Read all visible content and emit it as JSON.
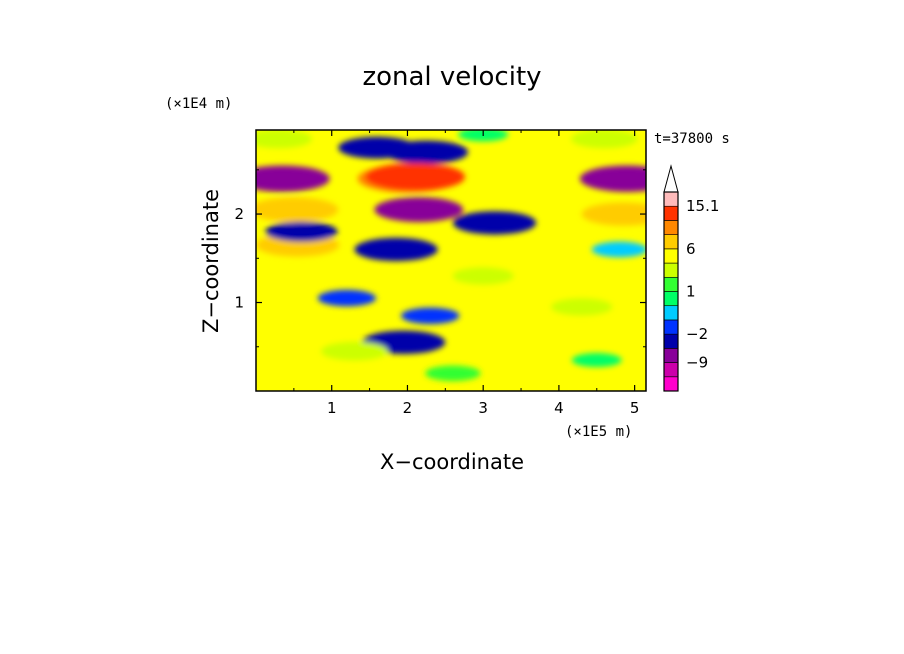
{
  "chart_data": {
    "type": "heatmap",
    "title": "zonal velocity",
    "xlabel": "X−coordinate",
    "ylabel": "Z−coordinate",
    "x_unit": "(×1E5 m)",
    "y_unit": "(×1E4 m)",
    "time_label": "t=37800 s",
    "xlim": [
      0,
      5.15
    ],
    "ylim": [
      0,
      2.95
    ],
    "x_ticks": [
      1,
      2,
      3,
      4,
      5
    ],
    "y_ticks": [
      1,
      2
    ],
    "x_tick_labels": [
      "1",
      "2",
      "3",
      "4",
      "5"
    ],
    "y_tick_labels": [
      "1",
      "2"
    ],
    "colorbar": {
      "levels": [
        -15,
        -12,
        -9,
        -6,
        -2,
        -1,
        0,
        1,
        2,
        4,
        6,
        9,
        12,
        15.1
      ],
      "labels": [
        {
          "value": 15.1,
          "text": "15.1"
        },
        {
          "value": 6,
          "text": "6"
        },
        {
          "value": 1,
          "text": "1"
        },
        {
          "value": -2,
          "text": "−2"
        },
        {
          "value": -9,
          "text": "−9"
        }
      ],
      "colors": [
        "#ff00cc",
        "#cc00aa",
        "#880099",
        "#0000aa",
        "#0033ff",
        "#00ccff",
        "#00ff66",
        "#33ff33",
        "#ccff00",
        "#ffff00",
        "#ffcc00",
        "#ff8800",
        "#ff3300",
        "#ffbbbb"
      ],
      "extend_top_color": "#ffffff"
    },
    "field_features": [
      {
        "x": 0.35,
        "z": 2.4,
        "value": -8
      },
      {
        "x": 4.9,
        "z": 2.4,
        "value": -8
      },
      {
        "x": 2.15,
        "z": 2.05,
        "value": -7
      },
      {
        "x": 3.15,
        "z": 1.9,
        "value": -6
      },
      {
        "x": 2.25,
        "z": 2.7,
        "value": -6
      },
      {
        "x": 1.6,
        "z": 2.75,
        "value": -5
      },
      {
        "x": 2.0,
        "z": 2.4,
        "value": 9
      },
      {
        "x": 2.1,
        "z": 2.42,
        "value": 13
      },
      {
        "x": 0.5,
        "z": 2.05,
        "value": 7
      },
      {
        "x": 4.85,
        "z": 2.0,
        "value": 6
      },
      {
        "x": 0.55,
        "z": 1.65,
        "value": 6
      },
      {
        "x": 1.85,
        "z": 1.6,
        "value": -6
      },
      {
        "x": 1.95,
        "z": 0.55,
        "value": -6
      },
      {
        "x": 0.6,
        "z": 1.8,
        "value": -4
      },
      {
        "x": 0.45,
        "z": 0.65,
        "value": 4
      },
      {
        "x": 1.3,
        "z": 0.45,
        "value": 3
      },
      {
        "x": 3.0,
        "z": 1.3,
        "value": 2
      },
      {
        "x": 4.3,
        "z": 0.95,
        "value": 2
      },
      {
        "x": 3.0,
        "z": 2.9,
        "value": 0
      },
      {
        "x": 4.6,
        "z": 2.85,
        "value": 3
      },
      {
        "x": 0.3,
        "z": 2.85,
        "value": 3
      },
      {
        "x": 1.2,
        "z": 1.05,
        "value": -1.5
      },
      {
        "x": 2.3,
        "z": 0.85,
        "value": -1.5
      },
      {
        "x": 4.5,
        "z": 0.35,
        "value": 0
      },
      {
        "x": 2.6,
        "z": 0.2,
        "value": 1
      },
      {
        "x": 4.8,
        "z": 1.6,
        "value": -1
      }
    ]
  }
}
